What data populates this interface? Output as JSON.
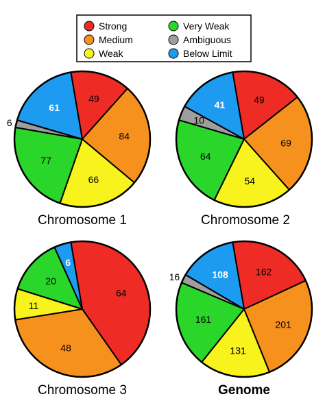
{
  "chart_data": {
    "type": "pie",
    "legend": {
      "placement": "top-center",
      "entries": [
        {
          "name": "Strong",
          "color": "#ee2b24"
        },
        {
          "name": "Medium",
          "color": "#f7911e"
        },
        {
          "name": "Weak",
          "color": "#f8f21d"
        },
        {
          "name": "Very Weak",
          "color": "#2bd62a"
        },
        {
          "name": "Ambiguous",
          "color": "#9e9e9e"
        },
        {
          "name": "Below Limit",
          "color": "#1d9bf0"
        }
      ]
    },
    "pies": [
      {
        "title": "Chromosome 1",
        "bold": false,
        "slices": [
          {
            "category": "Strong",
            "value": 49,
            "label": "49"
          },
          {
            "category": "Medium",
            "value": 84,
            "label": "84"
          },
          {
            "category": "Weak",
            "value": 66,
            "label": "66"
          },
          {
            "category": "Very Weak",
            "value": 77,
            "label": "77"
          },
          {
            "category": "Ambiguous",
            "value": 6,
            "label": "6",
            "outside": true
          },
          {
            "category": "Below Limit",
            "value": 61,
            "label": "61"
          }
        ]
      },
      {
        "title": "Chromosome 2",
        "bold": false,
        "slices": [
          {
            "category": "Strong",
            "value": 49,
            "label": "49"
          },
          {
            "category": "Medium",
            "value": 69,
            "label": "69"
          },
          {
            "category": "Weak",
            "value": 54,
            "label": "54"
          },
          {
            "category": "Very Weak",
            "value": 64,
            "label": "64"
          },
          {
            "category": "Ambiguous",
            "value": 10,
            "label": "10"
          },
          {
            "category": "Below Limit",
            "value": 41,
            "label": "41"
          }
        ]
      },
      {
        "title": "Chromosome 3",
        "bold": false,
        "slices": [
          {
            "category": "Strong",
            "value": 64,
            "label": "64"
          },
          {
            "category": "Medium",
            "value": 48,
            "label": "48"
          },
          {
            "category": "Weak",
            "value": 11,
            "label": "11"
          },
          {
            "category": "Very Weak",
            "value": 20,
            "label": "20"
          },
          {
            "category": "Ambiguous",
            "value": 0,
            "label": ""
          },
          {
            "category": "Below Limit",
            "value": 6,
            "label": "6"
          }
        ]
      },
      {
        "title": "Genome",
        "bold": true,
        "slices": [
          {
            "category": "Strong",
            "value": 162,
            "label": "162"
          },
          {
            "category": "Medium",
            "value": 201,
            "label": "201"
          },
          {
            "category": "Weak",
            "value": 131,
            "label": "131"
          },
          {
            "category": "Very Weak",
            "value": 161,
            "label": "161"
          },
          {
            "category": "Ambiguous",
            "value": 16,
            "label": "16",
            "outside": true
          },
          {
            "category": "Below Limit",
            "value": 108,
            "label": "108"
          }
        ]
      }
    ]
  }
}
